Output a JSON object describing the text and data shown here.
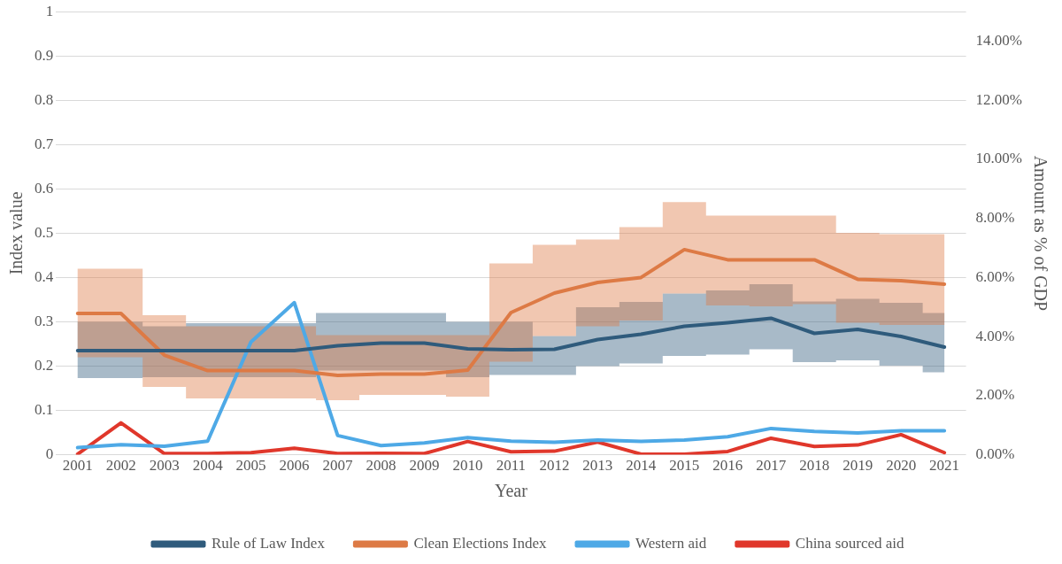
{
  "chart_data": {
    "type": "line",
    "xlabel": "Year",
    "ylabel": "Index value",
    "y2label": "Amount as % of GDP",
    "categories": [
      "2001",
      "2002",
      "2003",
      "2004",
      "2005",
      "2006",
      "2007",
      "2008",
      "2009",
      "2010",
      "2011",
      "2012",
      "2013",
      "2014",
      "2015",
      "2016",
      "2017",
      "2018",
      "2019",
      "2020",
      "2021"
    ],
    "series": [
      {
        "name": "Rule of Law Index",
        "color": "#2f5b7c",
        "values": [
          0.235,
          0.235,
          0.235,
          0.235,
          0.235,
          0.235,
          0.246,
          0.252,
          0.252,
          0.239,
          0.237,
          0.238,
          0.26,
          0.272,
          0.29,
          0.298,
          0.308,
          0.274,
          0.283,
          0.267,
          0.243
        ],
        "lower": [
          0.173,
          0.173,
          0.175,
          0.175,
          0.175,
          0.175,
          0.19,
          0.19,
          0.19,
          0.175,
          0.18,
          0.18,
          0.2,
          0.206,
          0.223,
          0.226,
          0.238,
          0.209,
          0.213,
          0.201,
          0.186
        ],
        "upper": [
          0.3,
          0.3,
          0.29,
          0.297,
          0.297,
          0.297,
          0.32,
          0.32,
          0.32,
          0.3,
          0.3,
          0.268,
          0.333,
          0.345,
          0.364,
          0.371,
          0.385,
          0.346,
          0.352,
          0.343,
          0.32
        ]
      },
      {
        "name": "Clean Elections Index",
        "color": "#dd7a45",
        "values": [
          0.319,
          0.319,
          0.225,
          0.19,
          0.19,
          0.19,
          0.179,
          0.182,
          0.182,
          0.191,
          0.321,
          0.365,
          0.389,
          0.4,
          0.463,
          0.44,
          0.44,
          0.44,
          0.396,
          0.393,
          0.385
        ],
        "lower": [
          0.22,
          0.22,
          0.153,
          0.127,
          0.127,
          0.127,
          0.123,
          0.135,
          0.135,
          0.131,
          0.21,
          0.268,
          0.29,
          0.303,
          0.364,
          0.337,
          0.335,
          0.34,
          0.298,
          0.293,
          0.293
        ],
        "upper": [
          0.42,
          0.42,
          0.315,
          0.29,
          0.29,
          0.29,
          0.27,
          0.27,
          0.27,
          0.27,
          0.432,
          0.474,
          0.486,
          0.514,
          0.57,
          0.54,
          0.54,
          0.54,
          0.501,
          0.498,
          0.498
        ]
      },
      {
        "name": "Western aid",
        "color": "#4ea9e6",
        "axis": "y2",
        "values": [
          0.24,
          0.34,
          0.29,
          0.46,
          3.82,
          5.15,
          0.65,
          0.31,
          0.4,
          0.58,
          0.46,
          0.42,
          0.5,
          0.45,
          0.5,
          0.61,
          0.89,
          0.79,
          0.74,
          0.81,
          0.81
        ]
      },
      {
        "name": "China sourced aid",
        "color": "#e0372b",
        "axis": "y2",
        "values": [
          0.02,
          1.08,
          0.04,
          0.04,
          0.07,
          0.22,
          0.04,
          0.05,
          0.04,
          0.45,
          0.1,
          0.12,
          0.43,
          0.02,
          0.02,
          0.11,
          0.56,
          0.28,
          0.33,
          0.68,
          0.07
        ]
      }
    ],
    "ylim": [
      0,
      1
    ],
    "yticks": [
      0,
      0.1,
      0.2,
      0.3,
      0.4,
      0.5,
      0.6,
      0.7,
      0.8,
      0.9,
      1
    ],
    "y2lim": [
      0,
      15
    ],
    "y2ticks": [
      {
        "value": 0,
        "label": "0.00%"
      },
      {
        "value": 2,
        "label": "2.00%"
      },
      {
        "value": 4,
        "label": "4.00%"
      },
      {
        "value": 6,
        "label": "6.00%"
      },
      {
        "value": 8,
        "label": "8.00%"
      },
      {
        "value": 10,
        "label": "10.00%"
      },
      {
        "value": 12,
        "label": "12.00%"
      },
      {
        "value": 14,
        "label": "14.00%"
      }
    ],
    "grid": "y",
    "legend": "bottom",
    "marker": "none",
    "line_style": "solid"
  }
}
